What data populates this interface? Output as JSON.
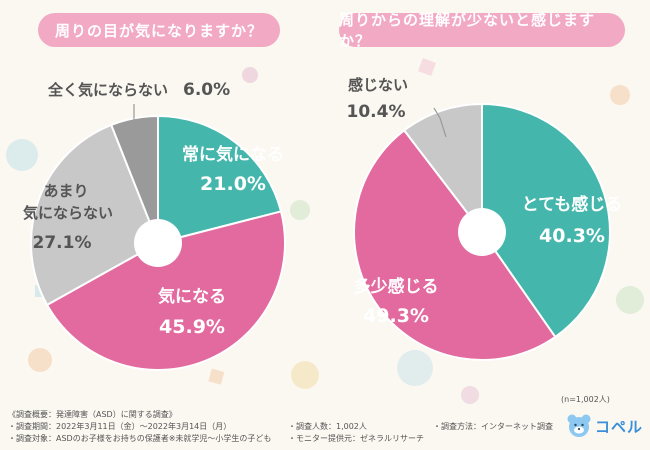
{
  "chart_data": [
    {
      "type": "pie",
      "title": "周りの目が気になりますか？",
      "slices": [
        {
          "label": "常に気になる",
          "value": 21.0,
          "value_label": "21.0%",
          "color": "#44b6ac"
        },
        {
          "label": "気になる",
          "value": 45.9,
          "value_label": "45.9%",
          "color": "#e26a9f"
        },
        {
          "label": "あまり気にならない",
          "value": 27.1,
          "value_label": "27.1%",
          "color": "#c8c8c8"
        },
        {
          "label": "全く気にならない",
          "value": 6.0,
          "value_label": "6.0%",
          "color": "#9a9a9a"
        }
      ]
    },
    {
      "type": "pie",
      "title": "周りからの理解が少ないと感じますか？",
      "slices": [
        {
          "label": "とても感じる",
          "value": 40.3,
          "value_label": "40.3%",
          "color": "#44b6ac"
        },
        {
          "label": "多少感じる",
          "value": 49.3,
          "value_label": "49.3%",
          "color": "#e26a9f"
        },
        {
          "label": "感じない",
          "value": 10.4,
          "value_label": "10.4%",
          "color": "#c8c8c8"
        }
      ]
    }
  ],
  "sample_size": "(n=1,002人)",
  "footer": {
    "heading": "《調査概要：発達障害（ASD）に関する調査》",
    "period": "・調査期間：2022年3月11日（金）～2022年3月14日（月）",
    "count": "・調査人数：1,002人",
    "method": "・調査方法：インターネット調査",
    "target": "・調査対象：ASDのお子様をお持ちの保護者※未就学児～小学生の子ども",
    "provider": "・モニター提供元：ゼネラルリサーチ"
  },
  "logo": {
    "text": "コペル",
    "icon": "bear-icon"
  }
}
